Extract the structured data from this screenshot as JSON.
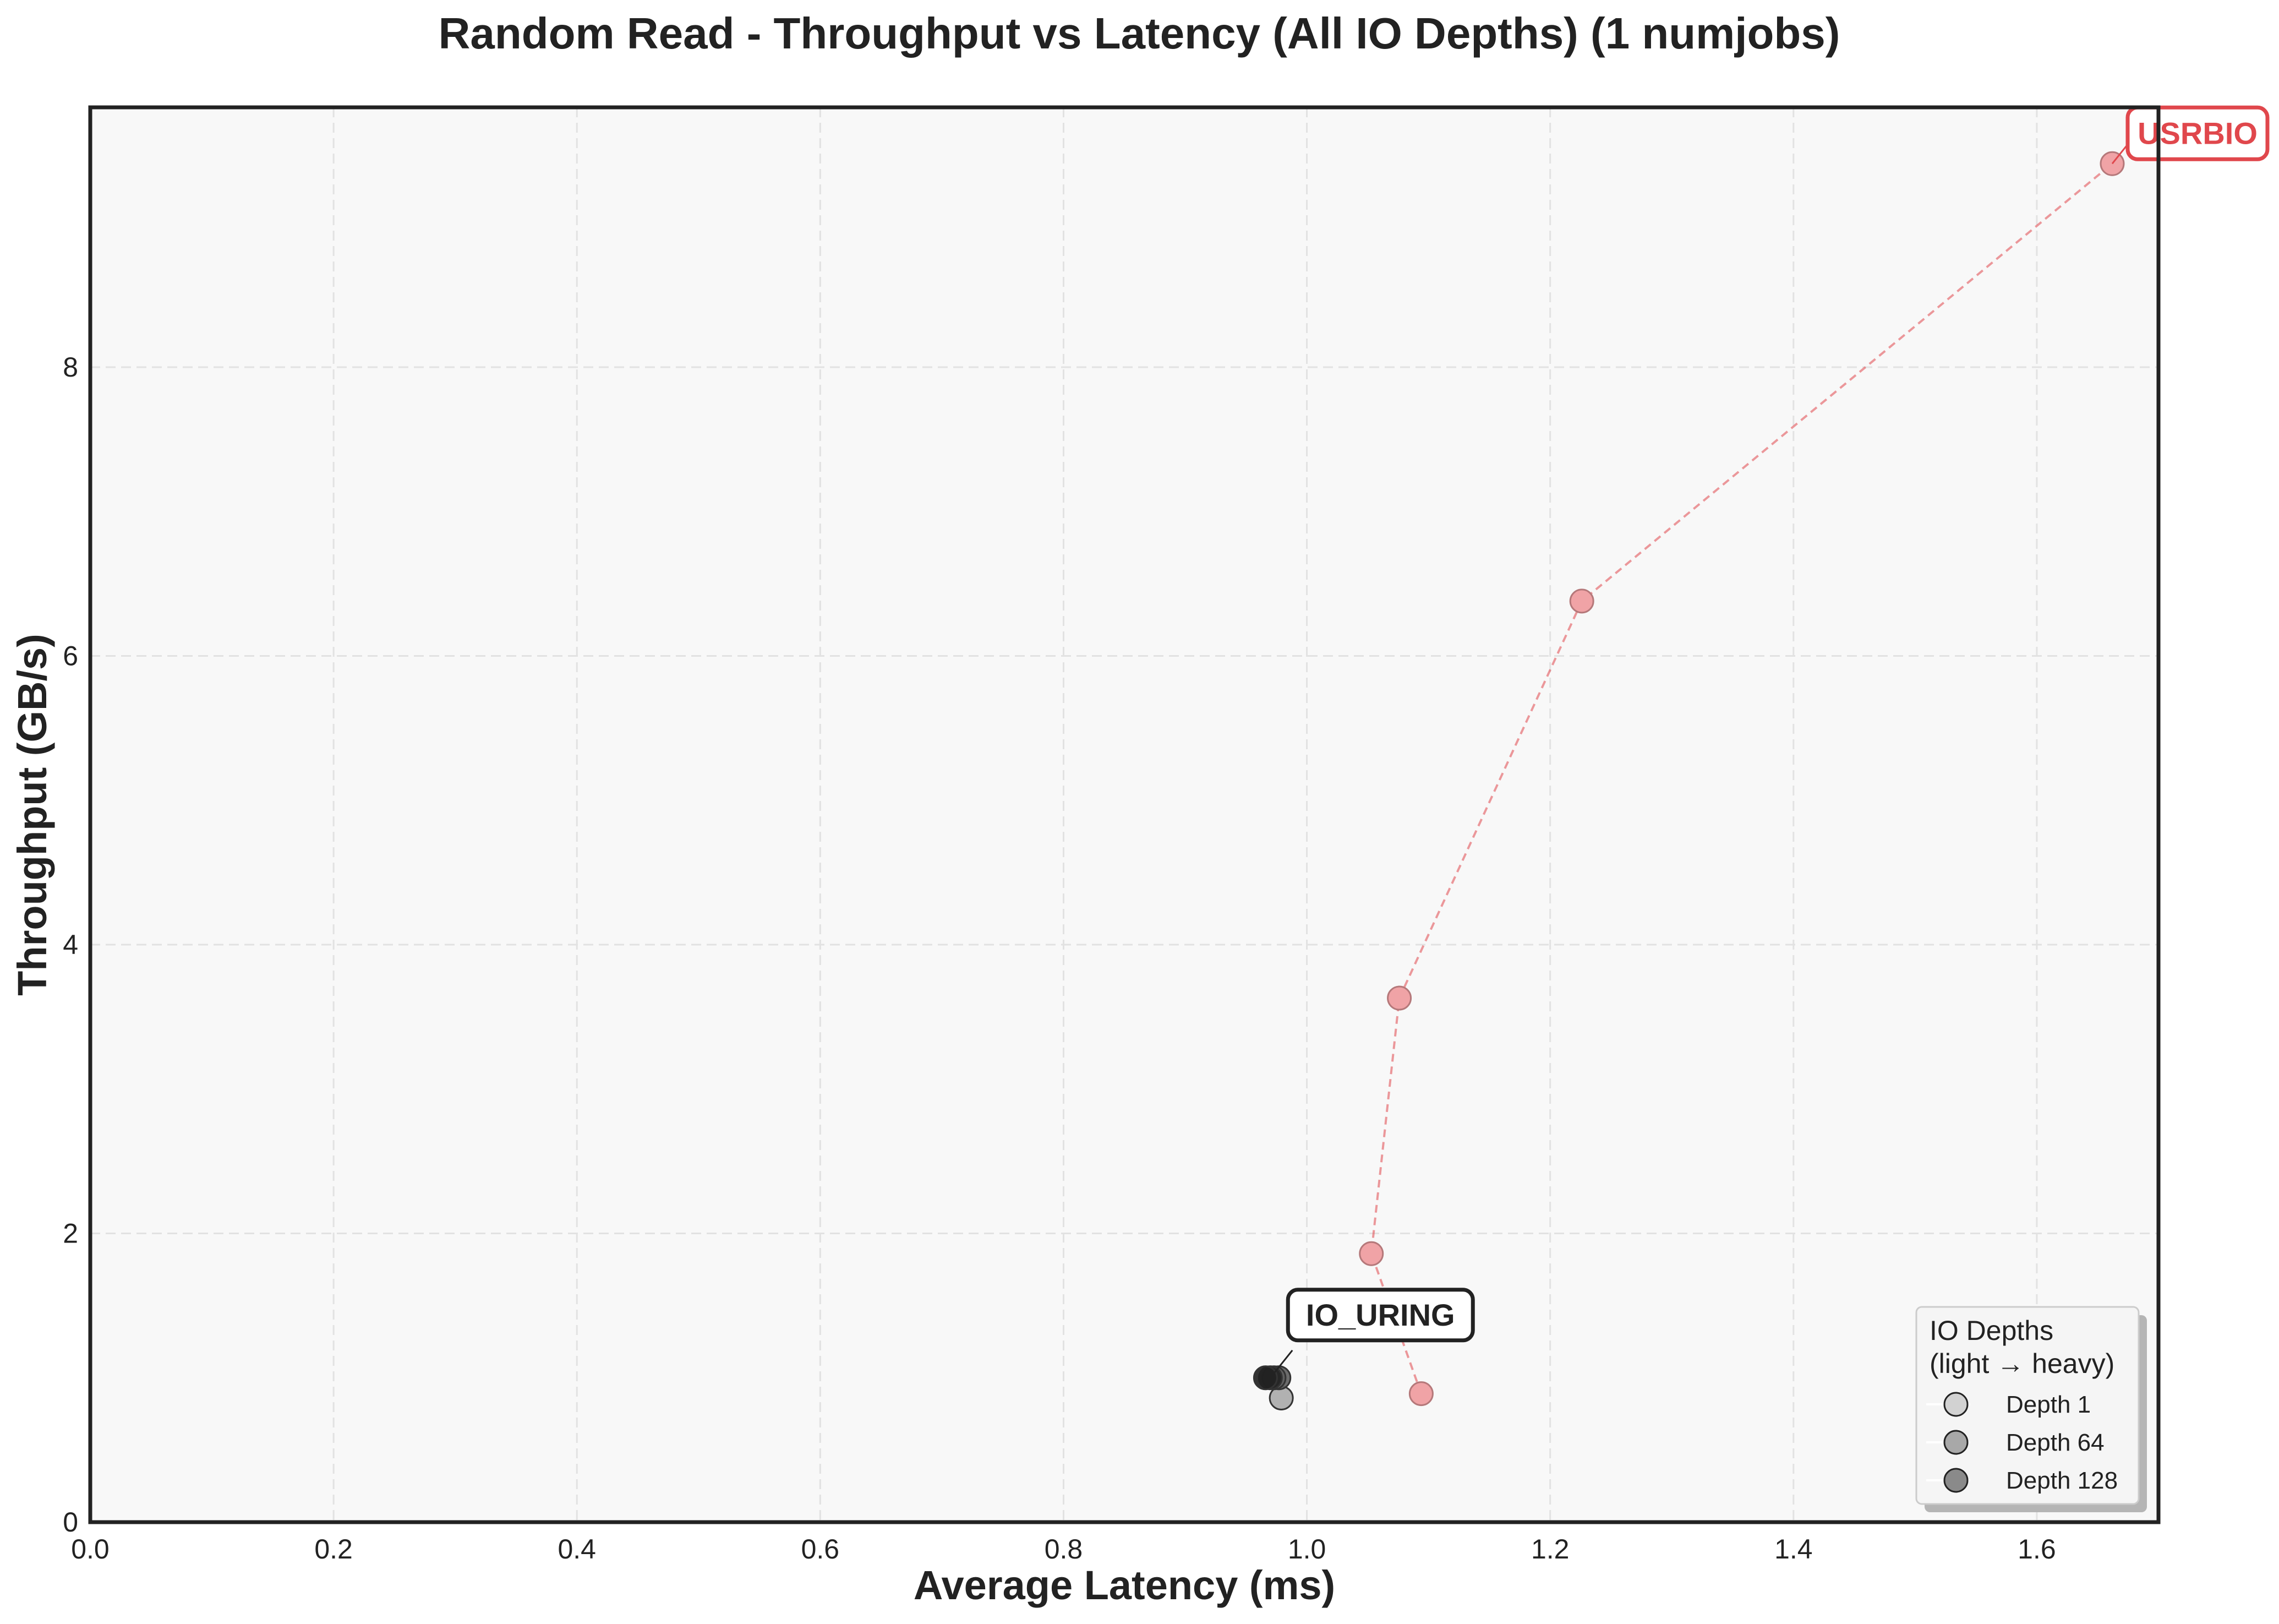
{
  "chart_data": {
    "type": "scatter",
    "title": "Random Read - Throughput vs Latency (All IO Depths) (1 numjobs)",
    "xlabel": "Average Latency (ms)",
    "ylabel": "Throughput (GB/s)",
    "xlim": [
      0.0,
      1.7
    ],
    "ylim": [
      0,
      9.8
    ],
    "xticks": [
      "0.0",
      "0.2",
      "0.4",
      "0.6",
      "0.8",
      "1.0",
      "1.2",
      "1.4",
      "1.6"
    ],
    "yticks": [
      "0",
      "2",
      "4",
      "6",
      "8"
    ],
    "grid": true,
    "series": [
      {
        "name": "USRBIO",
        "color": "#e0474c",
        "style": "dashed-line",
        "points": [
          {
            "x": 1.094,
            "y": 0.89
          },
          {
            "x": 1.053,
            "y": 1.86
          },
          {
            "x": 1.076,
            "y": 3.63
          },
          {
            "x": 1.226,
            "y": 6.38
          },
          {
            "x": 1.662,
            "y": 9.41
          }
        ]
      },
      {
        "name": "IO_URING",
        "color": "#222222",
        "style": "markers",
        "points": [
          {
            "x": 0.979,
            "y": 0.86,
            "depth": 1
          },
          {
            "x": 0.977,
            "y": 1.0,
            "depth": 64
          },
          {
            "x": 0.973,
            "y": 1.0,
            "depth": 64
          },
          {
            "x": 0.97,
            "y": 1.0,
            "depth": 128
          },
          {
            "x": 0.966,
            "y": 1.0,
            "depth": 128
          }
        ]
      }
    ],
    "annotations": [
      {
        "text": "USRBIO",
        "x": 1.662,
        "y": 9.41,
        "color": "#e0474c"
      },
      {
        "text": "IO_URING",
        "x": 0.97,
        "y": 1.0,
        "color": "#222222"
      }
    ],
    "legend": {
      "title_line1": "IO Depths",
      "title_line2": "(light → heavy)",
      "position": "bottom-right",
      "entries": [
        {
          "label": "Depth 1",
          "fill": "#d2d2d2"
        },
        {
          "label": "Depth 64",
          "fill": "#a8a8a8"
        },
        {
          "label": "Depth 128",
          "fill": "#8a8a8a"
        }
      ]
    }
  }
}
